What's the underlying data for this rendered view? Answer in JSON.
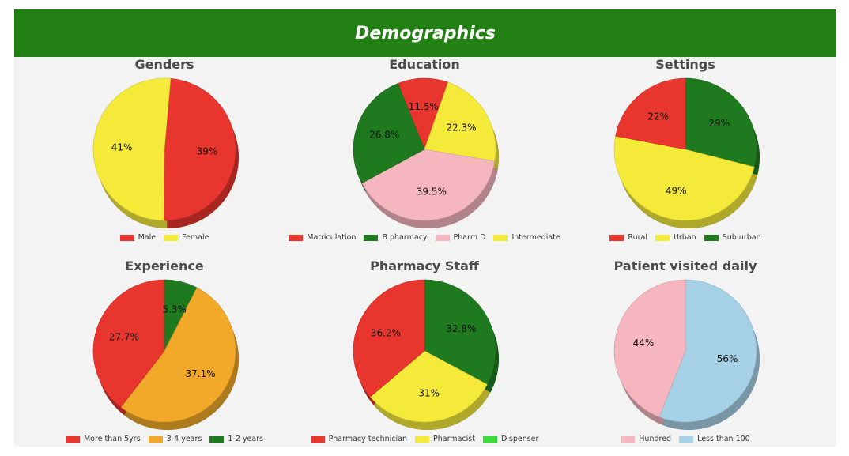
{
  "header": {
    "title": "Demographics"
  },
  "colors": {
    "banner": "#227f14",
    "panel": "#f3f3f3"
  },
  "chart_data": [
    {
      "type": "pie",
      "title": "Genders",
      "legend_position": "bottom",
      "start_angle": 5,
      "categories": [
        "Male",
        "Female"
      ],
      "values": [
        39,
        41
      ],
      "labels": [
        "39%",
        "41%"
      ],
      "colors": [
        "#e8352e",
        "#f5ea3a"
      ]
    },
    {
      "type": "pie",
      "title": "Education",
      "legend_position": "bottom",
      "start_angle": -22,
      "categories": [
        "Matriculation",
        "B pharmacy",
        "Pharm D",
        "Intermediate"
      ],
      "values": [
        11.5,
        26.8,
        39.5,
        22.3
      ],
      "order": [
        0,
        3,
        2,
        1
      ],
      "labels": [
        "11.5%",
        "26.8%",
        "39.5%",
        "22.3%"
      ],
      "colors": [
        "#e8352e",
        "#1f7a1f",
        "#f5b6c0",
        "#f5ea3a"
      ]
    },
    {
      "type": "pie",
      "title": "Settings",
      "legend_position": "bottom",
      "start_angle": 0,
      "categories": [
        "Rural",
        "Urban",
        "Sub urban"
      ],
      "values": [
        22,
        49,
        29
      ],
      "order": [
        2,
        1,
        0
      ],
      "labels": [
        "22%",
        "49%",
        "29%"
      ],
      "colors": [
        "#e8352e",
        "#f5ea3a",
        "#1f7a1f"
      ]
    },
    {
      "type": "pie",
      "title": "Experience",
      "legend_position": "bottom",
      "start_angle": 0,
      "categories": [
        "More than 5yrs",
        "3-4 years",
        "1-2 years"
      ],
      "values": [
        27.7,
        37.1,
        5.3
      ],
      "order": [
        2,
        1,
        0
      ],
      "labels": [
        "27.7%",
        "37.1%",
        "5.3%"
      ],
      "colors": [
        "#e8352e",
        "#f2a92a",
        "#1f7a1f"
      ]
    },
    {
      "type": "pie",
      "title": "Pharmacy Staff",
      "legend_position": "bottom",
      "start_angle": 0,
      "categories": [
        "Pharmacy technician",
        "Pharmacist",
        "Dispenser"
      ],
      "values": [
        36.2,
        31,
        32.8
      ],
      "order": [
        2,
        1,
        0
      ],
      "labels": [
        "36.2%",
        "31%",
        "32.8%"
      ],
      "colors": [
        "#e8352e",
        "#f5ea3a",
        "#1f7a1f"
      ],
      "legend_colors": [
        "#e8352e",
        "#f5ea3a",
        "#3ddc3d"
      ]
    },
    {
      "type": "pie",
      "title": "Patient visited daily",
      "legend_position": "bottom",
      "start_angle": 0,
      "categories": [
        "Hundred",
        "Less than 100"
      ],
      "values": [
        44,
        56
      ],
      "order": [
        1,
        0
      ],
      "labels": [
        "44%",
        "56%"
      ],
      "colors": [
        "#f5b6c0",
        "#a6d0e6"
      ]
    }
  ]
}
